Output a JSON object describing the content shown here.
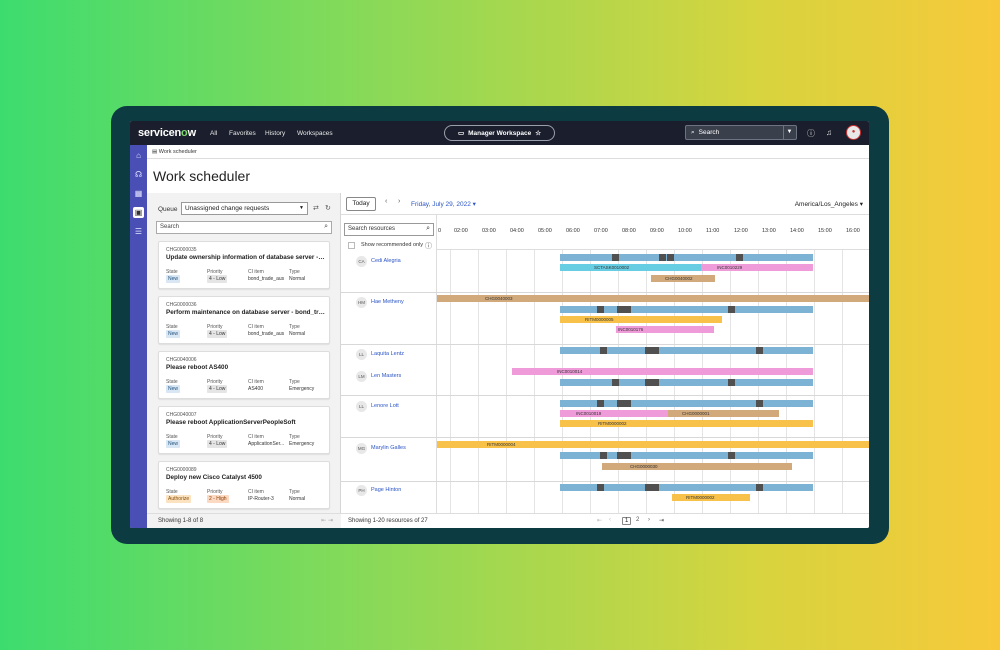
{
  "nav": {
    "logo_a": "servicen",
    "logo_o": "o",
    "logo_b": "w",
    "links": [
      "All",
      "Favorites",
      "History",
      "Workspaces"
    ],
    "workspace": "Manager Workspace",
    "search_placeholder": "Search"
  },
  "breadcrumb": "Work scheduler",
  "page_title": "Work scheduler",
  "queue": {
    "label": "Queue",
    "selected": "Unassigned change requests",
    "search_placeholder": "Search"
  },
  "cards": [
    {
      "num": "CHG0000035",
      "title": "Update ownership information of database server - bo...",
      "state": "New",
      "priority": "4 - Low",
      "ci": "bond_trade_aus",
      "type": "Normal"
    },
    {
      "num": "CHG0000036",
      "title": "Perform maintenance on database server - bond_tradi...",
      "state": "New",
      "priority": "4 - Low",
      "ci": "bond_trade_aus",
      "type": "Normal"
    },
    {
      "num": "CHG0040006",
      "title": "Please reboot AS400",
      "state": "New",
      "priority": "4 - Low",
      "ci": "AS400",
      "type": "Emergency"
    },
    {
      "num": "CHG0040007",
      "title": "Please reboot ApplicationServerPeopleSoft",
      "state": "New",
      "priority": "4 - Low",
      "ci": "ApplicationSer...",
      "type": "Emergency"
    },
    {
      "num": "CHG0000089",
      "title": "Deploy new Cisco Catalyst 4500",
      "state": "Authorize",
      "priority": "2 - High",
      "ci": "IP-Router-3",
      "type": "Normal"
    }
  ],
  "card_labels": {
    "state": "State",
    "priority": "Priority",
    "ci": "CI item",
    "type": "Type"
  },
  "left_footer": "Showing 1-8 of 8",
  "toolbar": {
    "today": "Today",
    "date": "Friday, July 29, 2022",
    "timezone": "America/Los_Angeles"
  },
  "resources": {
    "search_placeholder": "Search resources",
    "recommended_label": "Show recommended only"
  },
  "hours": [
    "0",
    "02:00",
    "03:00",
    "04:00",
    "05:00",
    "06:00",
    "07:00",
    "08:00",
    "09:00",
    "10:00",
    "11:00",
    "12:00",
    "13:00",
    "14:00",
    "15:00",
    "16:00"
  ],
  "people": [
    {
      "initials": "CA",
      "name": "Cedi Alegria"
    },
    {
      "initials": "HM",
      "name": "Hae Metheny"
    },
    {
      "initials": "LL",
      "name": "Laquita Lentz"
    },
    {
      "initials": "LM",
      "name": "Len Masters"
    },
    {
      "initials": "LL",
      "name": "Lenore Lott"
    },
    {
      "initials": "MG",
      "name": "Marylin Galles"
    },
    {
      "initials": "PH",
      "name": "Page Hinton"
    }
  ],
  "bar_labels": {
    "b1": "SCTASK0010002",
    "b2": "INC0010229",
    "b3": "CHG0040002",
    "b4": "CHG0040003",
    "b5": "RITM0000005",
    "b6": "INC0010176",
    "b7": "INC0010014",
    "b8": "INC0010019",
    "b9": "CHG0000001",
    "b10": "RITM0000002",
    "b11": "RITM0000004",
    "b12": "CHG0000030",
    "b13": "RITM0000002"
  },
  "right_footer": "Showing 1-20 resources of 27",
  "pages": [
    "1",
    "2"
  ],
  "colors": {
    "blue": "#7cb2d4",
    "cyan": "#67cde2",
    "pink": "#ef9bd9",
    "tan": "#d2a97a",
    "yellow": "#f8c24a"
  }
}
